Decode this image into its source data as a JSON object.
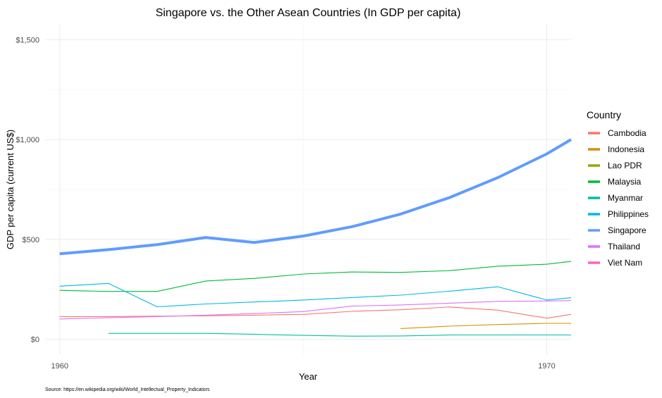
{
  "chart_data": {
    "type": "line",
    "title": "Singapore vs. the Other Asean Countries (In GDP per capita)",
    "xlabel": "Year",
    "ylabel": "GDP per capita (current US$)",
    "caption": "Source: https://en.wikipedia.org/wiki/World_Intellectual_Property_Indicators",
    "xlim": [
      1959.7,
      1970.5
    ],
    "ylim": [
      -75,
      1575
    ],
    "x_ticks": [
      1960,
      1970
    ],
    "x_tick_labels": [
      "1960",
      "1970"
    ],
    "y_ticks": [
      0,
      500,
      1000,
      1500
    ],
    "y_tick_labels": [
      "$0",
      "$500",
      "$1,000",
      "$1,500"
    ],
    "grid": true,
    "legend": {
      "title": "Country",
      "placement": "right"
    },
    "series": [
      {
        "name": "Cambodia",
        "color": "#F8766D",
        "x": [
          1960,
          1961,
          1962,
          1963,
          1964,
          1965,
          1966,
          1967,
          1968,
          1969,
          1970,
          1970.5
        ],
        "y": [
          114,
          114,
          116,
          118,
          121,
          125,
          140,
          148,
          162,
          146,
          106,
          125
        ]
      },
      {
        "name": "Indonesia",
        "color": "#D39200",
        "x": [
          1967,
          1968,
          1969,
          1970,
          1970.5
        ],
        "y": [
          54,
          66,
          74,
          80,
          80
        ]
      },
      {
        "name": "Lao PDR",
        "color": "#93AA00",
        "x": [],
        "y": []
      },
      {
        "name": "Malaysia",
        "color": "#00BA38",
        "x": [
          1960,
          1961,
          1962,
          1963,
          1964,
          1965,
          1966,
          1967,
          1968,
          1969,
          1970,
          1970.5
        ],
        "y": [
          245,
          240,
          240,
          292,
          305,
          327,
          337,
          335,
          344,
          366,
          376,
          390
        ]
      },
      {
        "name": "Myanmar",
        "color": "#00C19F",
        "x": [
          1961,
          1962,
          1963,
          1964,
          1965,
          1966,
          1967,
          1968,
          1969,
          1970,
          1970.5
        ],
        "y": [
          30,
          30,
          30,
          25,
          20,
          16,
          17,
          22,
          22,
          22,
          22
        ]
      },
      {
        "name": "Philippines",
        "color": "#00B9E3",
        "x": [
          1960,
          1961,
          1962,
          1963,
          1964,
          1965,
          1966,
          1967,
          1968,
          1969,
          1970,
          1970.5
        ],
        "y": [
          266,
          280,
          163,
          177,
          187,
          197,
          209,
          221,
          241,
          263,
          197,
          208
        ]
      },
      {
        "name": "Singapore",
        "color": "#619CFF",
        "x": [
          1960,
          1961,
          1962,
          1963,
          1964,
          1965,
          1966,
          1967,
          1968,
          1969,
          1970,
          1970.5
        ],
        "y": [
          428,
          449,
          474,
          510,
          485,
          517,
          564,
          627,
          709,
          810,
          928,
          1000
        ]
      },
      {
        "name": "Thailand",
        "color": "#DB72FB",
        "x": [
          1960,
          1961,
          1962,
          1963,
          1964,
          1965,
          1966,
          1967,
          1968,
          1969,
          1970,
          1970.5
        ],
        "y": [
          102,
          108,
          114,
          121,
          129,
          139,
          166,
          172,
          181,
          190,
          192,
          194
        ]
      },
      {
        "name": "Viet Nam",
        "color": "#FF61C3",
        "x": [],
        "y": []
      }
    ]
  }
}
